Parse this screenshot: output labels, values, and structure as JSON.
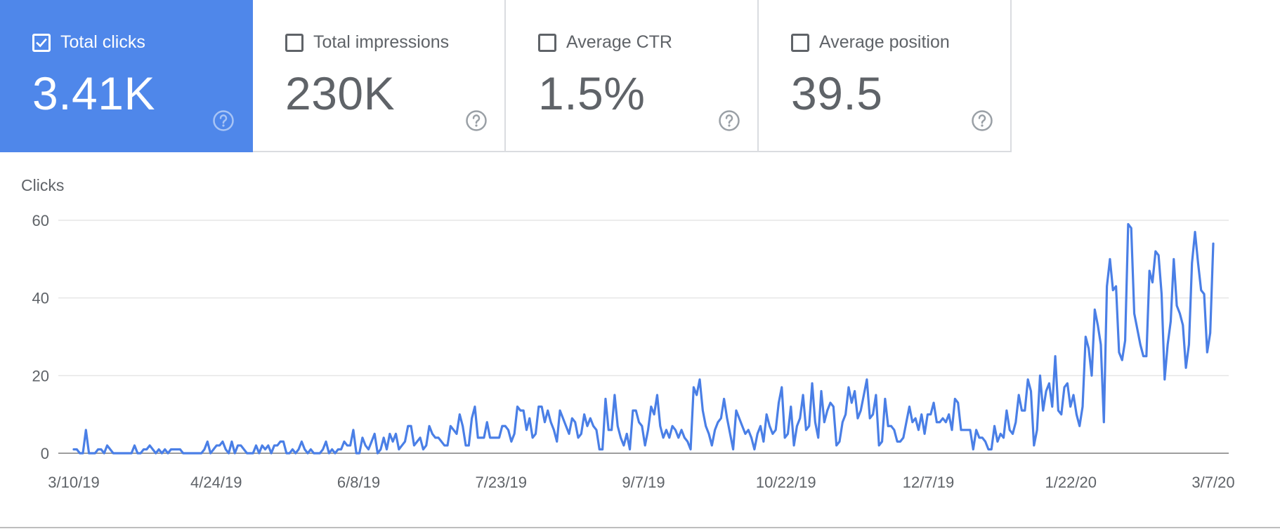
{
  "cards": [
    {
      "label": "Total clicks",
      "value": "3.41K",
      "checked": true
    },
    {
      "label": "Total impressions",
      "value": "230K",
      "checked": false
    },
    {
      "label": "Average CTR",
      "value": "1.5%",
      "checked": false
    },
    {
      "label": "Average position",
      "value": "39.5",
      "checked": false
    }
  ],
  "icons": {
    "help": "help-circle-icon",
    "checkbox": "checkbox-icon"
  },
  "colors": {
    "accent": "#4f87ea",
    "line": "#4a7fe6",
    "grid": "#e6e6e6",
    "text": "#5f6368"
  },
  "chart_data": {
    "type": "line",
    "ylabel": "Clicks",
    "ylim": [
      0,
      60
    ],
    "yticks": [
      0,
      20,
      40,
      60
    ],
    "grid": true,
    "x_tick_labels": [
      "3/10/19",
      "4/24/19",
      "6/8/19",
      "7/23/19",
      "9/7/19",
      "10/22/19",
      "12/7/19",
      "1/22/20",
      "3/7/20"
    ],
    "x_start": "3/10/19",
    "x_end": "3/7/20",
    "series": [
      {
        "values": [
          1,
          1,
          0,
          0,
          6,
          0,
          0,
          0,
          1,
          1,
          0,
          2,
          1,
          0,
          0,
          0,
          0,
          0,
          0,
          0,
          2,
          0,
          0,
          1,
          1,
          2,
          1,
          0,
          1,
          0,
          1,
          0,
          1,
          1,
          1,
          1,
          0,
          0,
          0,
          0,
          0,
          0,
          0,
          1,
          3,
          0,
          1,
          2,
          2,
          3,
          1,
          0,
          3,
          0,
          2,
          2,
          1,
          0,
          0,
          0,
          2,
          0,
          2,
          1,
          2,
          0,
          2,
          2,
          3,
          3,
          0,
          0,
          1,
          0,
          1,
          3,
          1,
          0,
          1,
          0,
          0,
          0,
          1,
          3,
          0,
          1,
          0,
          1,
          1,
          3,
          2,
          2,
          6,
          0,
          0,
          4,
          2,
          1,
          3,
          5,
          0,
          1,
          4,
          1,
          5,
          3,
          5,
          1,
          2,
          3,
          7,
          7,
          2,
          3,
          4,
          1,
          2,
          7,
          5,
          4,
          4,
          3,
          2,
          2,
          7,
          6,
          5,
          10,
          7,
          2,
          2,
          9,
          12,
          4,
          4,
          4,
          8,
          4,
          4,
          4,
          4,
          7,
          7,
          6,
          3,
          5,
          12,
          11,
          11,
          6,
          9,
          4,
          5,
          12,
          12,
          8,
          11,
          8,
          6,
          3,
          11,
          9,
          7,
          5,
          9,
          8,
          4,
          5,
          10,
          7,
          9,
          7,
          6,
          1,
          1,
          14,
          6,
          6,
          15,
          7,
          4,
          2,
          5,
          1,
          11,
          11,
          8,
          7,
          2,
          6,
          12,
          10,
          15,
          7,
          4,
          6,
          4,
          7,
          6,
          4,
          6,
          4,
          3,
          1,
          17,
          15,
          19,
          11,
          7,
          5,
          2,
          6,
          8,
          9,
          14,
          9,
          5,
          1,
          11,
          9,
          7,
          5,
          6,
          4,
          1,
          5,
          7,
          3,
          10,
          7,
          5,
          6,
          13,
          17,
          4,
          5,
          12,
          2,
          7,
          9,
          15,
          6,
          7,
          18,
          8,
          4,
          16,
          8,
          11,
          13,
          12,
          2,
          3,
          8,
          10,
          17,
          13,
          16,
          9,
          11,
          15,
          19,
          9,
          10,
          15,
          2,
          3,
          14,
          7,
          7,
          6,
          3,
          3,
          4,
          8,
          12,
          8,
          9,
          6,
          10,
          5,
          10,
          10,
          13,
          8,
          8,
          9,
          8,
          10,
          6,
          14,
          13,
          6,
          6,
          6,
          6,
          1,
          6,
          4,
          4,
          3,
          1,
          1,
          7,
          3,
          5,
          4,
          11,
          6,
          5,
          8,
          15,
          11,
          11,
          19,
          16,
          2,
          6,
          20,
          11,
          16,
          18,
          12,
          25,
          11,
          10,
          17,
          18,
          12,
          15,
          10,
          7,
          12,
          30,
          27,
          20,
          37,
          33,
          28,
          8,
          43,
          50,
          42,
          43,
          26,
          24,
          29,
          59,
          58,
          36,
          32,
          28,
          25,
          25,
          47,
          44,
          52,
          51,
          41,
          19,
          28,
          34,
          50,
          38,
          36,
          33,
          22,
          28,
          49,
          57,
          49,
          42,
          41,
          26,
          31,
          54
        ]
      }
    ]
  }
}
